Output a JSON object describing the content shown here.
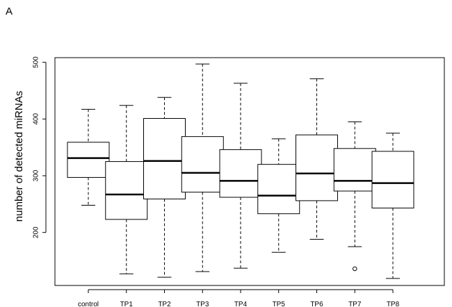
{
  "panel_label": "A",
  "chart_data": {
    "type": "boxplot",
    "title": "",
    "xlabel": "",
    "ylabel": "number of detected miRNAs",
    "ylim": [
      100,
      510
    ],
    "yticks": [
      200,
      300,
      400,
      500
    ],
    "grid": false,
    "categories": [
      "control",
      "TP1",
      "TP2",
      "TP3",
      "TP4",
      "TP5",
      "TP6",
      "TP7",
      "TP8"
    ],
    "boxes": [
      {
        "label": "control",
        "whisker_low": 248,
        "q1": 297,
        "median": 331,
        "q3": 359,
        "whisker_high": 417,
        "outliers": []
      },
      {
        "label": "TP1",
        "whisker_low": 127,
        "q1": 223,
        "median": 267,
        "q3": 325,
        "whisker_high": 424,
        "outliers": []
      },
      {
        "label": "TP2",
        "whisker_low": 121,
        "q1": 259,
        "median": 326,
        "q3": 401,
        "whisker_high": 438,
        "outliers": []
      },
      {
        "label": "TP3",
        "whisker_low": 131,
        "q1": 271,
        "median": 305,
        "q3": 369,
        "whisker_high": 497,
        "outliers": []
      },
      {
        "label": "TP4",
        "whisker_low": 137,
        "q1": 262,
        "median": 291,
        "q3": 346,
        "whisker_high": 463,
        "outliers": []
      },
      {
        "label": "TP5",
        "whisker_low": 165,
        "q1": 233,
        "median": 265,
        "q3": 320,
        "whisker_high": 365,
        "outliers": []
      },
      {
        "label": "TP6",
        "whisker_low": 188,
        "q1": 256,
        "median": 304,
        "q3": 372,
        "whisker_high": 471,
        "outliers": []
      },
      {
        "label": "TP7",
        "whisker_low": 175,
        "q1": 273,
        "median": 291,
        "q3": 348,
        "whisker_high": 395,
        "outliers": [
          136
        ]
      },
      {
        "label": "TP8",
        "whisker_low": 119,
        "q1": 243,
        "median": 287,
        "q3": 343,
        "whisker_high": 375,
        "outliers": []
      }
    ]
  }
}
